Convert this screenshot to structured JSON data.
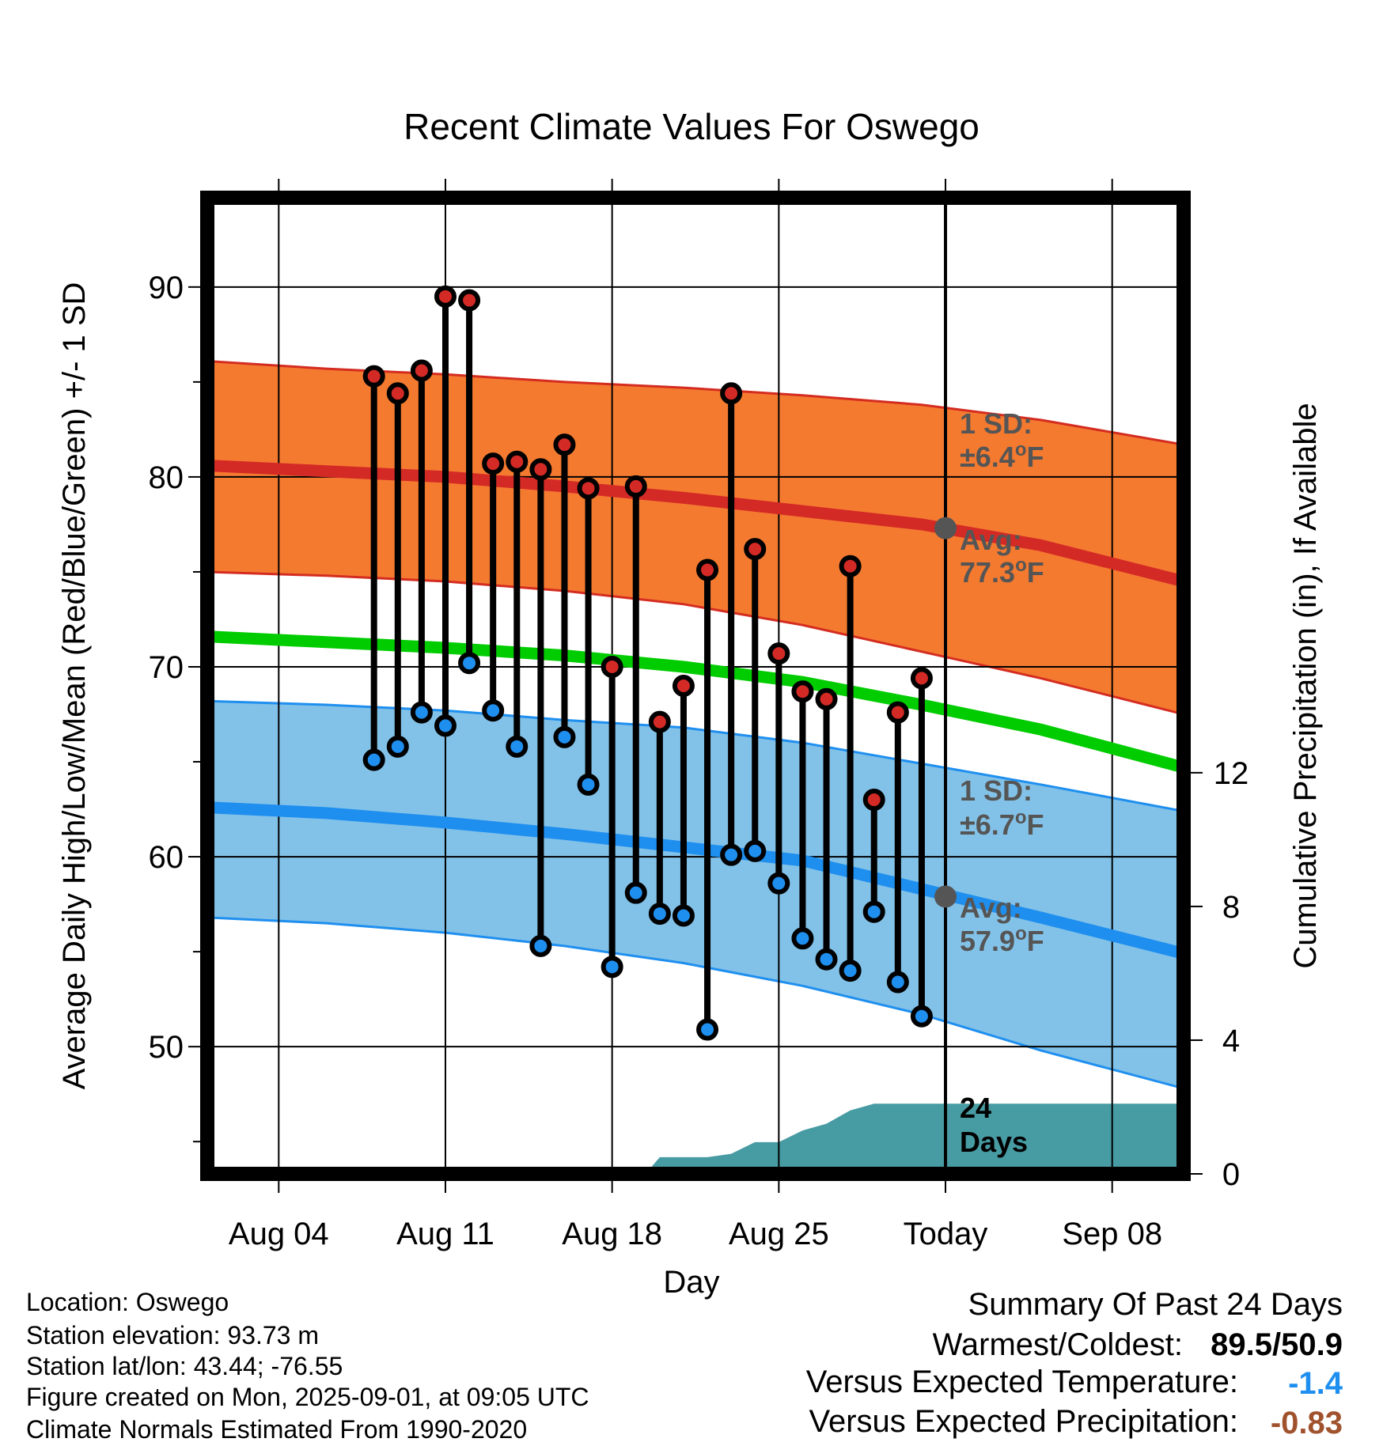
{
  "chart_data": {
    "type": "line",
    "title": "Recent Climate Values For Oswego",
    "xlabel": "Day",
    "ylabel": "Average Daily High/Low/Mean (Red/Blue/Green) +/- 1 SD",
    "y2label": "Cumulative Precipitation (in), If Available",
    "x_start": "Aug 01",
    "xlim_days": [
      0,
      41
    ],
    "x_ticks": [
      {
        "day": 3,
        "label": "Aug 04"
      },
      {
        "day": 10,
        "label": "Aug 11"
      },
      {
        "day": 17,
        "label": "Aug 18"
      },
      {
        "day": 24,
        "label": "Aug 25"
      },
      {
        "day": 31,
        "label": "Today"
      },
      {
        "day": 38,
        "label": "Sep 08"
      }
    ],
    "ylim": [
      43.3,
      94.7
    ],
    "y_ticks": [
      50,
      60,
      70,
      80,
      90
    ],
    "y_minor_ticks": [
      45,
      55,
      65,
      75,
      85
    ],
    "y2lim": [
      0,
      29.2
    ],
    "y2_ticks": [
      0,
      4,
      8,
      12
    ],
    "today_day": 31,
    "grid": true,
    "colors": {
      "high_band": "#f47a30",
      "high_band_edge": "#d42c20",
      "high_mean": "#d42a26",
      "low_band": "#83c2e8",
      "low_band_edge": "#1f8fef",
      "low_mean": "#1f8fef",
      "mean_line": "#00cc00",
      "precip": "#479ba3",
      "high_dot": "#d42a26",
      "low_dot": "#1f8fef",
      "marker": "#555555",
      "annotation": "#555555"
    },
    "normal_days": [
      0,
      5,
      10,
      15,
      20,
      25,
      30,
      35,
      41
    ],
    "normal_high": [
      80.6,
      80.3,
      80.0,
      79.5,
      78.9,
      78.2,
      77.5,
      76.4,
      74.5
    ],
    "normal_high_upper": [
      86.1,
      85.7,
      85.4,
      85.0,
      84.7,
      84.3,
      83.8,
      83.0,
      81.7
    ],
    "normal_high_lower": [
      75.0,
      74.8,
      74.5,
      74.0,
      73.3,
      72.2,
      70.8,
      69.4,
      67.5
    ],
    "normal_mean": [
      71.6,
      71.3,
      71.0,
      70.6,
      70.0,
      69.2,
      68.0,
      66.7,
      64.7
    ],
    "normal_low": [
      62.6,
      62.3,
      61.8,
      61.2,
      60.5,
      59.8,
      58.3,
      56.8,
      54.9
    ],
    "normal_low_upper": [
      68.2,
      68.0,
      67.7,
      67.2,
      66.8,
      66.0,
      64.9,
      63.8,
      62.4
    ],
    "normal_low_lower": [
      56.8,
      56.5,
      56.0,
      55.3,
      54.4,
      53.2,
      51.7,
      49.8,
      47.8
    ],
    "observations": [
      {
        "day": 7,
        "high": 85.3,
        "low": 65.1
      },
      {
        "day": 8,
        "high": 84.4,
        "low": 65.8
      },
      {
        "day": 9,
        "high": 85.6,
        "low": 67.6
      },
      {
        "day": 10,
        "high": 89.5,
        "low": 66.9
      },
      {
        "day": 11,
        "high": 89.3,
        "low": 70.2
      },
      {
        "day": 12,
        "high": 80.7,
        "low": 67.7
      },
      {
        "day": 13,
        "high": 80.8,
        "low": 65.8
      },
      {
        "day": 14,
        "high": 80.4,
        "low": 55.3
      },
      {
        "day": 15,
        "high": 81.7,
        "low": 66.3
      },
      {
        "day": 16,
        "high": 79.4,
        "low": 63.8
      },
      {
        "day": 17,
        "high": 70.0,
        "low": 54.2
      },
      {
        "day": 18,
        "high": 79.5,
        "low": 58.1
      },
      {
        "day": 19,
        "high": 67.1,
        "low": 57.0
      },
      {
        "day": 20,
        "high": 69.0,
        "low": 56.9
      },
      {
        "day": 21,
        "high": 75.1,
        "low": 50.9
      },
      {
        "day": 22,
        "high": 84.4,
        "low": 60.1
      },
      {
        "day": 23,
        "high": 76.2,
        "low": 60.3
      },
      {
        "day": 24,
        "high": 70.7,
        "low": 58.6
      },
      {
        "day": 25,
        "high": 68.7,
        "low": 55.7
      },
      {
        "day": 26,
        "high": 68.3,
        "low": 54.6
      },
      {
        "day": 27,
        "high": 75.3,
        "low": 54.0
      },
      {
        "day": 28,
        "high": 63.0,
        "low": 57.1
      },
      {
        "day": 29,
        "high": 67.6,
        "low": 53.4
      },
      {
        "day": 30,
        "high": 69.4,
        "low": 51.6
      }
    ],
    "precip_cumulative": [
      {
        "day": 18.4,
        "value": 0.0
      },
      {
        "day": 19.0,
        "value": 0.5
      },
      {
        "day": 21.0,
        "value": 0.5
      },
      {
        "day": 22.0,
        "value": 0.6
      },
      {
        "day": 23.0,
        "value": 0.95
      },
      {
        "day": 24.0,
        "value": 0.95
      },
      {
        "day": 25.0,
        "value": 1.3
      },
      {
        "day": 26.0,
        "value": 1.5
      },
      {
        "day": 27.0,
        "value": 1.9
      },
      {
        "day": 28.0,
        "value": 2.1
      },
      {
        "day": 41.0,
        "value": 2.1
      }
    ],
    "today_high_avg": 77.3,
    "today_low_avg": 57.9,
    "annotations": {
      "high_sd_label": "1 SD:",
      "high_sd_value": "±6.4",
      "high_avg_label": "Avg:",
      "high_avg_value": "77.3",
      "low_sd_label": "1 SD:",
      "low_sd_value": "±6.7",
      "low_avg_label": "Avg:",
      "low_avg_value": "57.9",
      "degree": "o",
      "unit": "F",
      "days_count": "24",
      "days_label": "Days"
    }
  },
  "info": {
    "location": "Location: Oswego",
    "elevation": "Station elevation: 93.73 m",
    "latlon": "Station lat/lon: 43.44; -76.55",
    "created": "Figure created on Mon, 2025-09-01, at 09:05 UTC",
    "normals": "Climate Normals Estimated From 1990-2020"
  },
  "summary": {
    "title": "Summary Of Past 24 Days",
    "warm_cold_label": "Warmest/Coldest:",
    "warm_cold_value": "89.5/50.9",
    "temp_label": "Versus Expected Temperature:",
    "temp_value": "-1.4",
    "temp_color": "#1f8fef",
    "precip_label": "Versus Expected Precipitation:",
    "precip_value": "-0.83",
    "precip_color": "#a0522d"
  }
}
